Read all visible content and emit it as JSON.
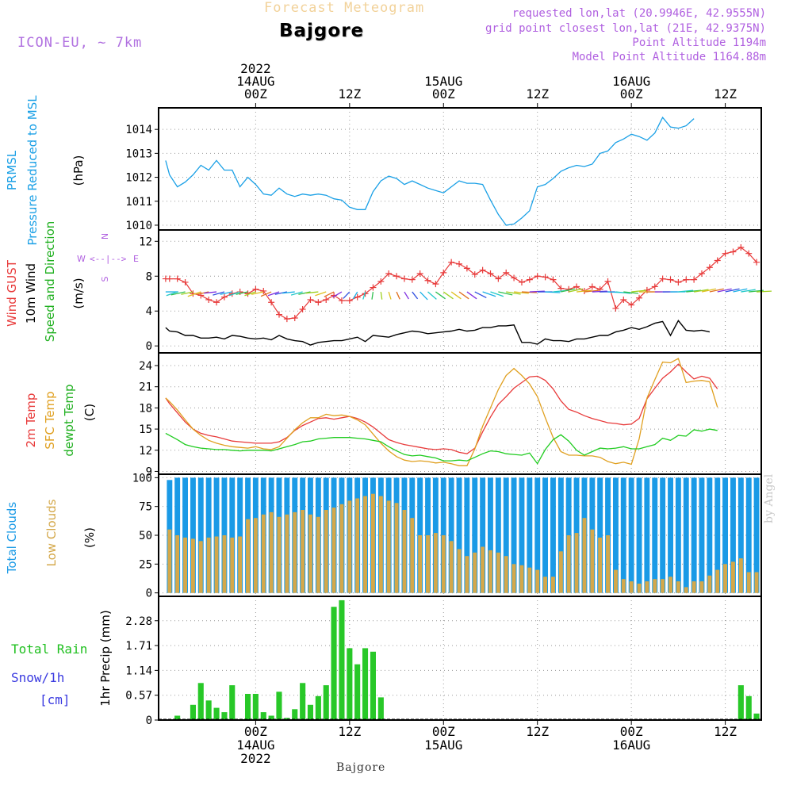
{
  "header": {
    "product_title": "Forecast Meteogram",
    "station": "Bajgore",
    "model": "ICON-EU, ~ 7km",
    "requested": "requested lon,lat (20.9946E, 42.9555N)",
    "grid_point": "grid point closest lon,lat (21E, 42.9375N)",
    "point_altitude": "Point Altitude 1194m",
    "model_altitude": "Model Point Altitude 1164.88m",
    "watermark": "by Angel",
    "footer_station": "Bajgore"
  },
  "colors": {
    "pressure": "#1aa0e6",
    "gust": "#e83a3a",
    "wind": "#000000",
    "t2m": "#e83a3a",
    "tsfc": "#e0a020",
    "dewpt": "#20cc20",
    "total_clouds": "#1a9ae6",
    "low_clouds": "#d4a84a",
    "rain": "#28c828",
    "snow": "#3a3ae0",
    "label_purple": "#b060e0"
  },
  "chart_data": [
    {
      "type": "line",
      "id": "pressure",
      "ylabel_lines": [
        "PRMSL",
        "Pressure Reduced to MSL"
      ],
      "unit": "(hPa)",
      "ylim": [
        1009.8,
        1014.9
      ],
      "yticks": [
        1010,
        1011,
        1012,
        1013,
        1014
      ],
      "x": [
        0.5,
        1,
        2,
        3,
        4,
        5,
        6,
        7,
        8,
        9,
        10,
        11,
        12,
        13,
        14,
        15,
        16,
        17,
        18,
        19,
        20,
        21,
        22,
        23,
        24,
        25,
        26,
        27,
        28,
        29,
        30,
        31,
        32,
        33,
        34,
        35,
        36,
        37,
        38,
        39,
        40,
        41,
        42,
        43,
        44,
        45,
        46,
        47,
        48,
        49,
        50,
        51,
        52,
        53,
        54,
        55,
        56,
        57,
        58,
        59,
        60,
        61,
        62,
        63,
        64,
        65,
        66,
        67,
        68,
        69,
        70,
        71,
        72,
        73,
        74,
        75,
        76,
        77,
        78,
        79,
        80,
        81,
        82,
        83,
        84,
        85,
        86,
        87,
        88,
        89,
        90,
        91,
        92,
        93,
        94,
        95,
        96,
        97,
        98,
        99,
        100,
        101,
        102,
        103,
        104,
        105,
        106,
        107,
        108,
        109,
        110,
        111,
        112,
        113,
        114,
        115,
        116,
        117,
        118,
        119,
        120,
        121,
        122,
        123,
        124,
        125,
        126,
        127,
        128,
        129,
        130,
        131,
        132,
        133,
        134,
        135,
        136,
        137,
        138,
        139,
        140,
        141,
        142,
        143,
        144,
        145,
        146,
        147,
        148,
        149,
        150,
        151,
        152,
        153,
        154,
        155,
        156,
        157,
        158,
        159,
        160,
        161,
        162,
        163,
        164,
        165,
        166,
        167,
        168,
        169,
        170,
        171,
        172,
        173,
        174,
        175,
        176,
        177,
        178,
        179,
        180,
        181,
        182,
        183,
        184,
        185,
        186,
        187,
        188,
        189,
        190,
        191,
        192,
        193,
        194,
        195,
        196,
        197,
        198,
        199,
        200,
        201,
        202,
        203,
        204,
        205,
        206,
        207,
        208,
        209,
        210,
        211,
        212,
        213,
        214,
        215,
        216,
        217,
        218,
        219,
        220,
        221,
        222,
        223,
        224,
        225,
        226,
        227,
        228,
        229,
        230,
        231,
        232,
        233,
        234,
        235,
        236,
        237,
        238,
        239,
        240,
        241,
        242,
        243,
        244,
        245,
        246,
        247,
        248,
        249,
        250,
        251,
        252,
        253,
        254,
        255,
        256,
        257,
        258,
        259,
        260,
        261,
        262,
        263,
        264,
        265,
        266,
        267,
        268,
        269,
        270,
        271,
        272,
        273,
        274,
        275,
        276,
        277,
        278,
        279,
        280,
        281,
        282,
        283,
        284,
        285,
        286,
        287,
        288,
        289,
        290,
        291,
        292,
        293,
        294,
        295,
        296,
        297,
        298,
        299,
        300,
        301,
        302,
        303,
        304,
        305,
        306,
        307,
        308,
        309,
        310,
        311,
        312,
        313,
        314,
        315,
        316,
        317,
        318,
        319,
        320,
        321,
        322,
        323,
        324,
        325,
        326,
        327,
        328,
        329,
        330,
        331,
        332,
        333,
        334,
        335,
        336,
        337,
        338,
        339,
        340,
        341,
        342,
        343,
        344,
        345,
        346,
        347,
        348,
        349,
        350,
        351,
        352,
        353,
        354,
        355,
        356,
        357,
        358,
        359,
        360,
        361,
        362,
        363,
        364,
        365,
        366,
        367,
        368,
        369,
        370,
        371,
        372,
        373,
        374,
        375,
        376,
        377,
        378,
        379,
        380,
        381,
        382,
        383,
        384,
        385,
        386,
        387,
        388,
        389,
        390,
        391,
        392,
        393,
        394,
        395,
        396,
        397,
        398,
        399,
        400,
        401,
        402,
        403,
        404,
        405,
        406,
        407,
        408,
        409,
        410,
        411,
        412,
        413,
        414,
        415,
        416,
        417,
        418,
        419,
        420,
        421,
        422,
        423,
        424,
        425,
        426,
        427,
        428,
        429,
        430,
        431,
        432,
        433,
        434,
        435,
        436,
        437,
        438,
        439,
        440,
        441,
        442,
        443,
        444,
        445,
        446,
        447,
        448,
        449,
        450,
        451,
        452,
        453,
        454,
        455,
        456,
        457,
        458,
        459,
        460,
        461,
        462,
        463,
        464,
        465,
        466,
        467,
        468,
        469,
        470,
        471,
        472,
        473,
        474,
        475,
        476,
        477,
        478,
        479,
        480,
        481,
        482,
        483,
        484,
        485,
        486,
        487,
        488,
        489,
        490,
        491,
        492,
        493,
        494,
        495,
        496,
        497,
        498,
        499,
        500,
        501,
        502,
        503,
        504,
        505,
        506,
        507,
        508,
        509,
        510,
        511,
        512,
        513,
        514,
        515,
        516,
        517,
        518,
        519,
        520,
        521,
        522,
        523,
        524,
        525,
        526,
        527,
        528,
        529,
        530,
        531,
        532,
        533,
        534,
        535,
        536,
        537,
        538,
        539,
        540,
        541,
        542,
        543,
        544,
        545,
        546,
        547,
        548,
        549,
        550,
        551,
        552,
        553,
        554,
        555,
        556,
        557,
        558,
        559,
        560,
        561,
        562,
        563,
        564,
        565,
        566,
        567,
        568,
        569,
        570,
        571,
        572,
        573,
        574,
        575,
        576,
        577,
        578,
        579,
        580,
        581,
        582,
        583,
        584,
        585,
        586,
        587,
        588,
        589,
        590,
        591,
        592,
        593,
        594,
        595,
        596,
        597,
        598,
        599,
        600,
        601,
        602,
        603,
        604,
        605,
        606,
        607,
        608,
        609,
        610,
        611,
        612,
        613,
        614,
        615,
        616,
        617,
        618,
        619,
        620,
        621,
        622,
        623,
        624,
        625,
        626,
        627,
        628,
        629,
        630,
        631,
        632,
        633,
        634,
        635,
        636,
        637,
        638,
        639,
        640,
        641,
        642,
        643,
        644,
        645,
        646,
        647,
        648,
        649,
        650,
        651,
        652,
        653,
        654,
        655,
        656,
        657,
        658,
        659,
        660,
        661,
        662,
        663,
        664,
        665,
        666,
        667,
        668,
        669,
        670,
        671,
        672,
        673,
        674,
        675,
        676,
        677,
        678,
        679,
        680,
        681,
        682,
        683,
        684,
        685,
        686,
        687,
        688,
        689,
        690,
        691,
        692,
        693,
        694,
        695,
        696,
        697,
        698,
        699,
        700,
        701,
        702,
        703,
        704,
        705,
        706,
        707,
        708,
        709,
        710,
        711,
        712,
        713,
        714,
        715,
        716,
        717,
        718,
        719,
        720,
        721,
        722,
        723,
        724,
        725,
        726,
        727,
        728,
        729,
        730,
        731,
        732,
        733,
        734,
        735,
        736,
        737,
        738,
        739,
        740,
        741,
        742,
        743,
        744,
        745,
        746,
        747,
        748,
        749,
        750,
        751,
        752,
        753,
        754,
        755,
        756,
        757,
        758,
        759,
        760,
        761,
        762,
        763,
        764,
        765,
        766,
        767,
        768,
        769,
        770,
        771,
        772,
        773,
        774,
        775,
        776,
        777,
        778,
        779,
        780,
        781,
        782,
        783,
        784,
        785,
        786,
        787,
        788,
        789,
        790,
        791,
        792,
        793,
        794,
        795,
        796,
        797,
        798,
        799,
        800
      ],
      "series": []
    }
  ]
}
